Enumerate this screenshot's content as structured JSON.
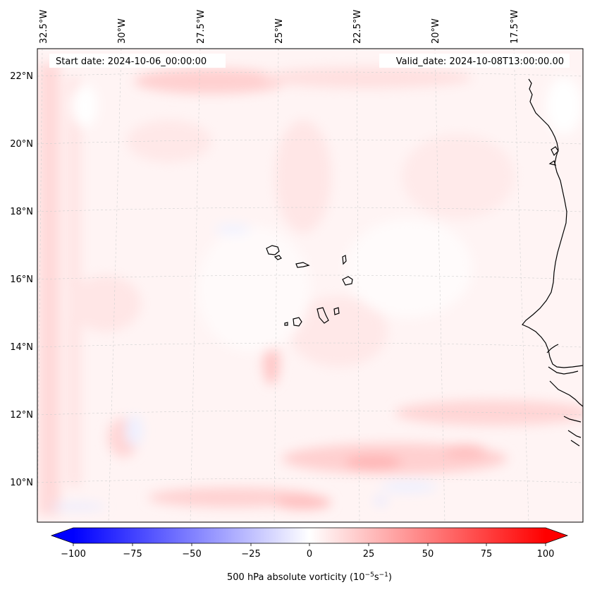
{
  "header": {
    "start_date": "Start date: 2024-10-06_00:00:00",
    "valid_date": "Valid_date: 2024-10-08T13:00:00.00"
  },
  "map": {
    "longitude_labels": [
      "32.5°W",
      "30°W",
      "27.5°W",
      "25°W",
      "22.5°W",
      "20°W",
      "17.5°W"
    ],
    "latitude_labels": [
      "22°N",
      "20°N",
      "18°N",
      "16°N",
      "14°N",
      "12°N",
      "10°N"
    ],
    "coastline_color": "#000000",
    "gridline_color": "#c8c8c8"
  },
  "colorbar": {
    "label_prefix": "500 hPa absolute vorticity (10",
    "label_exp1": "−5",
    "label_mid": "s",
    "label_exp2": "−1",
    "label_suffix": ")",
    "ticks": [
      "−100",
      "−75",
      "−50",
      "−25",
      "0",
      "25",
      "50",
      "75",
      "100"
    ],
    "min_color": "#0000ff",
    "mid_color": "#ffffff",
    "max_color": "#ff0000"
  }
}
